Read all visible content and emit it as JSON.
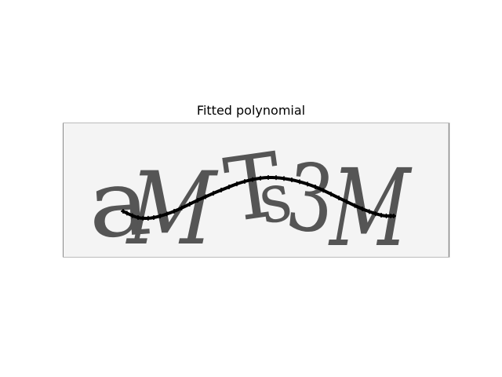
{
  "plot": {
    "title": "Fitted polynomial"
  },
  "captcha": {
    "text": "aMTs3M",
    "background_color": "#f4f4f4",
    "glyph_color": "#555555"
  },
  "fit_curve": {
    "color": "#000000",
    "marker": "cross"
  }
}
